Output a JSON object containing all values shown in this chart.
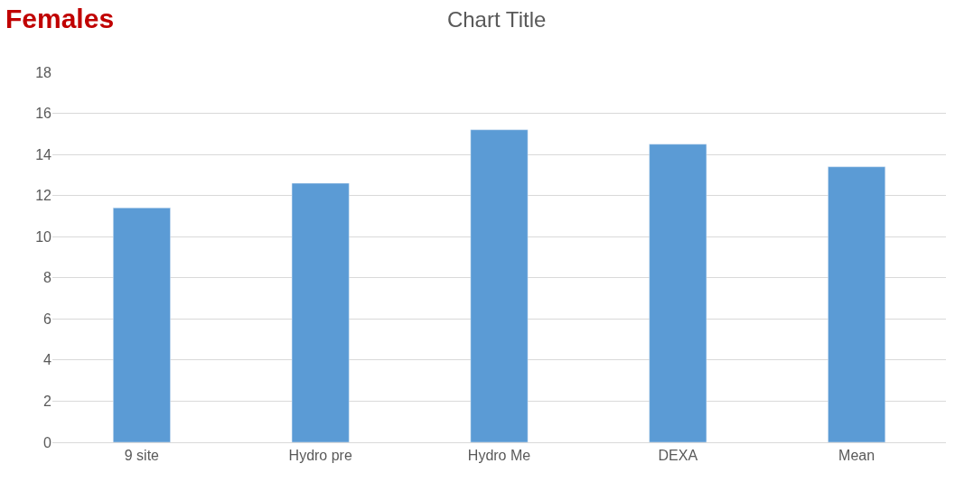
{
  "chart_data": {
    "type": "bar",
    "title": "Chart Title",
    "annotations": [
      "Females"
    ],
    "categories": [
      "9 site",
      "Hydro pre",
      "Hydro Me",
      "DEXA",
      "Mean"
    ],
    "values": [
      11.4,
      12.6,
      15.2,
      14.5,
      13.4
    ],
    "color": "#5b9bd5",
    "ylim": [
      0,
      18
    ],
    "yticks": [
      0,
      2,
      4,
      6,
      8,
      10,
      12,
      14,
      16,
      18
    ],
    "grid": "y"
  }
}
